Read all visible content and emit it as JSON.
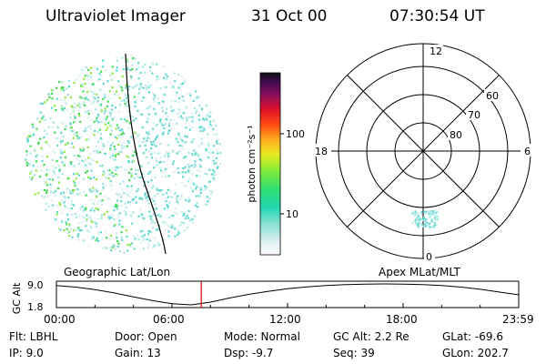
{
  "header": {
    "instrument": "Ultraviolet Imager",
    "date": "31 Oct 00",
    "time": "07:30:54 UT"
  },
  "colorbar": {
    "unit_label": "photon cm⁻²s⁻¹",
    "ticks": [
      "100",
      "10"
    ]
  },
  "polar": {
    "mlt_labels": {
      "top": "12",
      "left": "18",
      "right": "6",
      "bottom": "0"
    },
    "lat_labels": [
      "60",
      "70",
      "80"
    ]
  },
  "timeline": {
    "left_title": "Geographic Lat/Lon",
    "right_title": "Apex  MLat/MLT",
    "ylabel": "GC Alt",
    "y_ticks": [
      "9.0",
      "1.8"
    ],
    "x_ticks": [
      "00:00",
      "06:00",
      "12:00",
      "18:00",
      "23:59"
    ],
    "current_marker": "07:30:54",
    "marker_color": "#dd0000",
    "curve_points": [
      {
        "t": "00:00",
        "alt": 8.8
      },
      {
        "t": "01:00",
        "alt": 8.2
      },
      {
        "t": "02:00",
        "alt": 7.3
      },
      {
        "t": "03:00",
        "alt": 6.1
      },
      {
        "t": "04:00",
        "alt": 4.7
      },
      {
        "t": "05:00",
        "alt": 3.3
      },
      {
        "t": "06:00",
        "alt": 2.2
      },
      {
        "t": "07:00",
        "alt": 1.8
      },
      {
        "t": "08:00",
        "alt": 2.8
      },
      {
        "t": "09:00",
        "alt": 4.3
      },
      {
        "t": "10:00",
        "alt": 5.6
      },
      {
        "t": "11:00",
        "alt": 6.7
      },
      {
        "t": "12:00",
        "alt": 7.6
      },
      {
        "t": "13:00",
        "alt": 8.3
      },
      {
        "t": "14:00",
        "alt": 8.8
      },
      {
        "t": "15:00",
        "alt": 9.1
      },
      {
        "t": "16:00",
        "alt": 9.3
      },
      {
        "t": "17:00",
        "alt": 9.35
      },
      {
        "t": "18:00",
        "alt": 9.3
      },
      {
        "t": "19:00",
        "alt": 9.1
      },
      {
        "t": "20:00",
        "alt": 8.8
      },
      {
        "t": "21:00",
        "alt": 8.2
      },
      {
        "t": "22:00",
        "alt": 7.4
      },
      {
        "t": "23:00",
        "alt": 6.4
      },
      {
        "t": "23:59",
        "alt": 5.4
      }
    ]
  },
  "footer": {
    "flt": "Flt: LBHL",
    "ip": "IP:  9.0",
    "door": "Door: Open",
    "gain": "Gain: 13",
    "mode": "Mode: Normal",
    "dsp": "Dsp:   -9.7",
    "gc_alt": "GC Alt: 2.2 Re",
    "seq": "Seq: 39",
    "glat": "GLat: -69.6",
    "glon": "GLon: 202.7"
  }
}
